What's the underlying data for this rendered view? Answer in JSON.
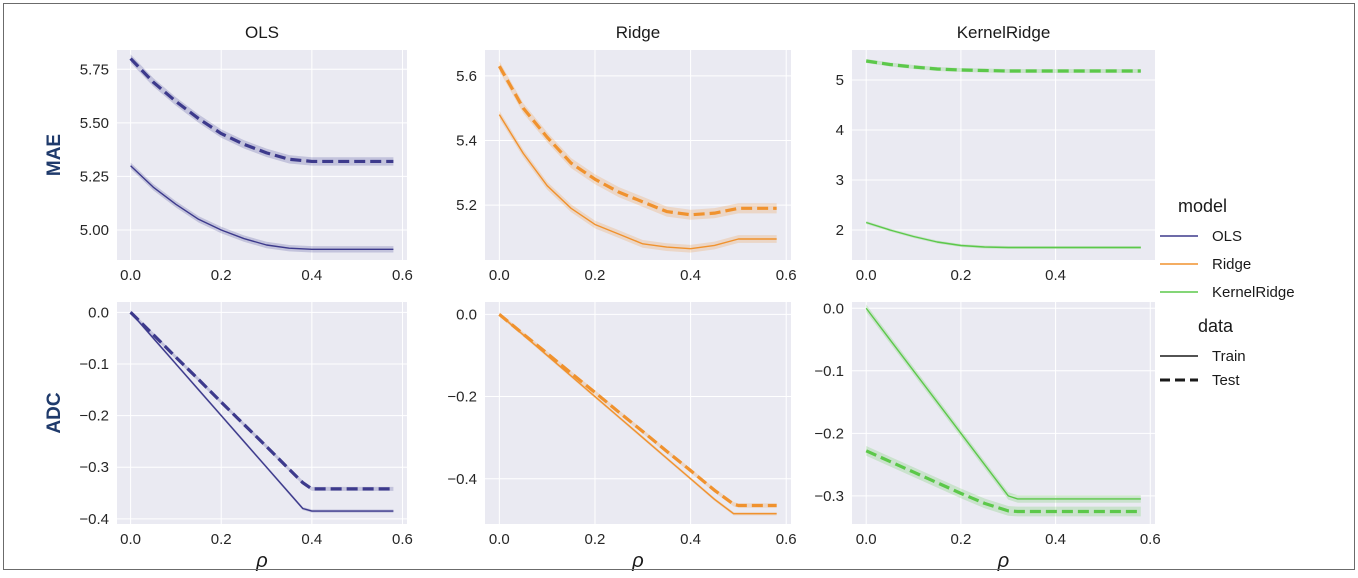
{
  "xlabel": "ρ",
  "rows": [
    {
      "label": "MAE"
    },
    {
      "label": "ADC"
    }
  ],
  "legend": {
    "model_title": "model",
    "models": [
      {
        "name": "OLS",
        "color": "#3d3a8c"
      },
      {
        "name": "Ridge",
        "color": "#f0922e"
      },
      {
        "name": "KernelRidge",
        "color": "#5cc84a"
      }
    ],
    "data_title": "data",
    "styles": [
      {
        "name": "Train",
        "dash": "solid"
      },
      {
        "name": "Test",
        "dash": "dashed"
      }
    ]
  },
  "chart_data": [
    {
      "type": "line",
      "title": "OLS",
      "ylabel": "MAE",
      "xlabel": "",
      "xlim": [
        -0.03,
        0.61
      ],
      "ylim": [
        4.86,
        5.84
      ],
      "xticks": [
        "0.0",
        "0.2",
        "0.4",
        "0.6"
      ],
      "xtick_values": [
        0,
        0.2,
        0.4,
        0.6
      ],
      "yticks": [
        "5.75",
        "5.50",
        "5.25",
        "5.00"
      ],
      "ytick_values": [
        5.75,
        5.5,
        5.25,
        5.0
      ],
      "x": [
        0,
        0.05,
        0.1,
        0.15,
        0.2,
        0.25,
        0.3,
        0.35,
        0.4,
        0.45,
        0.5,
        0.58
      ],
      "color": "#3d3a8c",
      "band": 0.015,
      "series": [
        {
          "name": "Train",
          "values": [
            5.3,
            5.2,
            5.12,
            5.05,
            5.0,
            4.96,
            4.93,
            4.915,
            4.91,
            4.91,
            4.91,
            4.91
          ]
        },
        {
          "name": "Test",
          "values": [
            5.8,
            5.69,
            5.6,
            5.52,
            5.45,
            5.4,
            5.36,
            5.33,
            5.32,
            5.32,
            5.32,
            5.32
          ]
        }
      ]
    },
    {
      "type": "line",
      "title": "Ridge",
      "ylabel": "",
      "xlabel": "",
      "xlim": [
        -0.03,
        0.61
      ],
      "ylim": [
        5.03,
        5.68
      ],
      "xticks": [
        "0.0",
        "0.2",
        "0.4",
        "0.6"
      ],
      "xtick_values": [
        0,
        0.2,
        0.4,
        0.6
      ],
      "yticks": [
        "5.6",
        "5.4",
        "5.2"
      ],
      "ytick_values": [
        5.6,
        5.4,
        5.2
      ],
      "x": [
        0,
        0.05,
        0.1,
        0.15,
        0.2,
        0.25,
        0.3,
        0.35,
        0.4,
        0.45,
        0.5,
        0.58
      ],
      "color": "#f0922e",
      "band": 0.012,
      "series": [
        {
          "name": "Train",
          "values": [
            5.48,
            5.36,
            5.26,
            5.19,
            5.14,
            5.11,
            5.08,
            5.07,
            5.065,
            5.075,
            5.095,
            5.095
          ]
        },
        {
          "name": "Test",
          "values": [
            5.63,
            5.5,
            5.41,
            5.33,
            5.28,
            5.24,
            5.21,
            5.18,
            5.17,
            5.175,
            5.19,
            5.19
          ]
        }
      ]
    },
    {
      "type": "line",
      "title": "KernelRidge",
      "ylabel": "",
      "xlabel": "",
      "xlim": [
        -0.03,
        0.61
      ],
      "ylim": [
        1.4,
        5.6
      ],
      "xticks": [
        "0.0",
        "0.2",
        "0.4"
      ],
      "xtick_values": [
        0,
        0.2,
        0.4
      ],
      "yticks": [
        "5",
        "4",
        "3",
        "2"
      ],
      "ytick_values": [
        5,
        4,
        3,
        2
      ],
      "x": [
        0,
        0.05,
        0.1,
        0.15,
        0.2,
        0.25,
        0.3,
        0.35,
        0.4,
        0.45,
        0.5,
        0.58
      ],
      "color": "#5cc84a",
      "band": 0.03,
      "series": [
        {
          "name": "Train",
          "values": [
            2.15,
            2.0,
            1.87,
            1.76,
            1.69,
            1.66,
            1.65,
            1.65,
            1.65,
            1.65,
            1.65,
            1.65
          ]
        },
        {
          "name": "Test",
          "values": [
            5.38,
            5.31,
            5.26,
            5.22,
            5.2,
            5.19,
            5.18,
            5.18,
            5.18,
            5.18,
            5.18,
            5.18
          ]
        }
      ]
    },
    {
      "type": "line",
      "title": "",
      "ylabel": "ADC",
      "xlabel": "ρ",
      "xlim": [
        -0.03,
        0.61
      ],
      "ylim": [
        -0.41,
        0.02
      ],
      "xticks": [
        "0.0",
        "0.2",
        "0.4",
        "0.6"
      ],
      "xtick_values": [
        0,
        0.2,
        0.4,
        0.6
      ],
      "yticks": [
        "0.0",
        "−0.1",
        "−0.2",
        "−0.3",
        "−0.4"
      ],
      "ytick_values": [
        0,
        -0.1,
        -0.2,
        -0.3,
        -0.4
      ],
      "x": [
        0,
        0.05,
        0.1,
        0.15,
        0.2,
        0.25,
        0.3,
        0.35,
        0.38,
        0.4,
        0.45,
        0.5,
        0.58
      ],
      "color": "#3d3a8c",
      "band": 0.003,
      "series": [
        {
          "name": "Train",
          "values": [
            0.0,
            -0.05,
            -0.1,
            -0.15,
            -0.2,
            -0.25,
            -0.3,
            -0.35,
            -0.38,
            -0.385,
            -0.385,
            -0.385,
            -0.385
          ]
        },
        {
          "name": "Test",
          "values": [
            0.0,
            -0.043,
            -0.087,
            -0.13,
            -0.174,
            -0.217,
            -0.26,
            -0.304,
            -0.33,
            -0.342,
            -0.342,
            -0.342,
            -0.342
          ]
        }
      ]
    },
    {
      "type": "line",
      "title": "",
      "ylabel": "",
      "xlabel": "ρ",
      "xlim": [
        -0.03,
        0.61
      ],
      "ylim": [
        -0.51,
        0.03
      ],
      "xticks": [
        "0.0",
        "0.2",
        "0.4",
        "0.6"
      ],
      "xtick_values": [
        0,
        0.2,
        0.4,
        0.6
      ],
      "yticks": [
        "0.0",
        "−0.2",
        "−0.4"
      ],
      "ytick_values": [
        0,
        -0.2,
        -0.4
      ],
      "x": [
        0,
        0.05,
        0.1,
        0.15,
        0.2,
        0.25,
        0.3,
        0.35,
        0.4,
        0.45,
        0.49,
        0.5,
        0.58
      ],
      "color": "#f0922e",
      "band": 0.004,
      "series": [
        {
          "name": "Train",
          "values": [
            0.0,
            -0.05,
            -0.1,
            -0.15,
            -0.2,
            -0.25,
            -0.3,
            -0.35,
            -0.4,
            -0.45,
            -0.485,
            -0.485,
            -0.485
          ]
        },
        {
          "name": "Test",
          "values": [
            0.0,
            -0.048,
            -0.095,
            -0.143,
            -0.19,
            -0.238,
            -0.285,
            -0.333,
            -0.38,
            -0.428,
            -0.462,
            -0.465,
            -0.465
          ]
        }
      ]
    },
    {
      "type": "line",
      "title": "",
      "ylabel": "",
      "xlabel": "ρ",
      "xlim": [
        -0.03,
        0.61
      ],
      "ylim": [
        -0.345,
        0.01
      ],
      "xticks": [
        "0.0",
        "0.2",
        "0.4",
        "0.6"
      ],
      "xtick_values": [
        0,
        0.2,
        0.4,
        0.6
      ],
      "yticks": [
        "0.0",
        "−0.1",
        "−0.2",
        "−0.3"
      ],
      "ytick_values": [
        0,
        -0.1,
        -0.2,
        -0.3
      ],
      "x": [
        0,
        0.05,
        0.1,
        0.15,
        0.2,
        0.25,
        0.3,
        0.32,
        0.35,
        0.4,
        0.45,
        0.5,
        0.58
      ],
      "color": "#5cc84a",
      "band": 0.006,
      "series": [
        {
          "name": "Train",
          "values": [
            0.0,
            -0.05,
            -0.1,
            -0.15,
            -0.2,
            -0.25,
            -0.3,
            -0.305,
            -0.305,
            -0.305,
            -0.305,
            -0.305,
            -0.305
          ]
        },
        {
          "name": "Test",
          "values": [
            -0.228,
            -0.245,
            -0.262,
            -0.279,
            -0.296,
            -0.312,
            -0.324,
            -0.325,
            -0.325,
            -0.325,
            -0.325,
            -0.325,
            -0.325
          ]
        }
      ]
    }
  ]
}
